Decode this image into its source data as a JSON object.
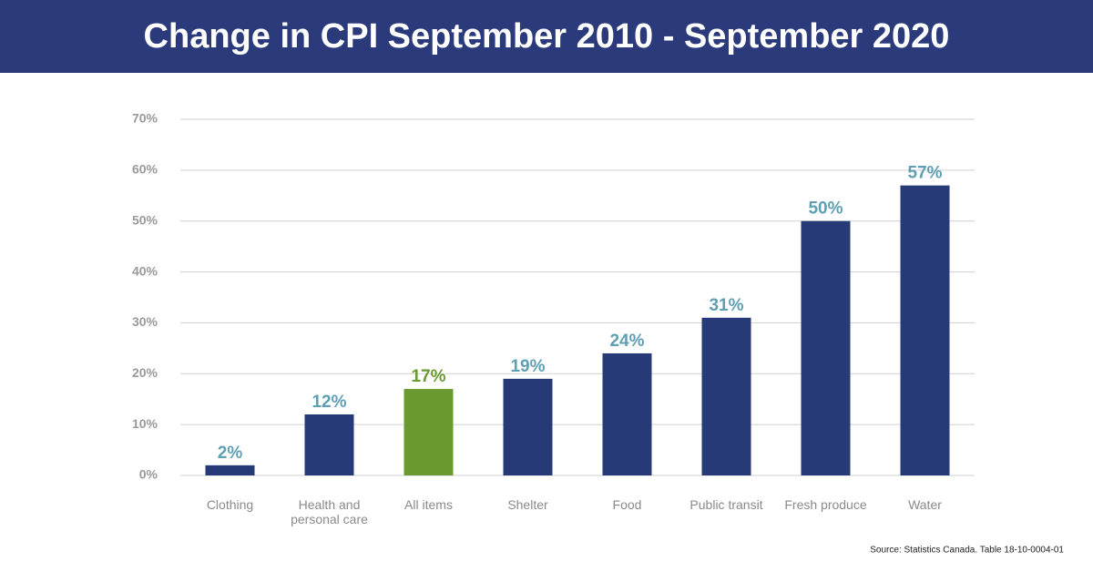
{
  "chart_data": {
    "type": "bar",
    "title": "Change in CPI September 2010 - September 2020",
    "categories": [
      "Clothing",
      "Health and personal care",
      "All items",
      "Shelter",
      "Food",
      "Public  transit",
      "Fresh produce",
      "Water"
    ],
    "values": [
      2,
      12,
      17,
      19,
      24,
      31,
      50,
      57
    ],
    "value_labels": [
      "2%",
      "12%",
      "17%",
      "19%",
      "24%",
      "31%",
      "50%",
      "57%"
    ],
    "colors": [
      "#263a78",
      "#263a78",
      "#6a9a2f",
      "#263a78",
      "#263a78",
      "#263a78",
      "#263a78",
      "#263a78"
    ],
    "label_colors": [
      "#5e9fb4",
      "#5e9fb4",
      "#6a9a2f",
      "#5e9fb4",
      "#5e9fb4",
      "#5e9fb4",
      "#5e9fb4",
      "#5e9fb4"
    ],
    "ylim": [
      0,
      70
    ],
    "yticks": [
      {
        "value": 0,
        "label": "0%"
      },
      {
        "value": 10,
        "label": "10%"
      },
      {
        "value": 20,
        "label": "20%"
      },
      {
        "value": 30,
        "label": "30%"
      },
      {
        "value": 40,
        "label": "40%"
      },
      {
        "value": 50,
        "label": "50%"
      },
      {
        "value": 60,
        "label": "60%"
      },
      {
        "value": 70,
        "label": "70%"
      }
    ],
    "grid": true,
    "source": "Source: Statistics Canada. Table 18-10-0004-01"
  }
}
